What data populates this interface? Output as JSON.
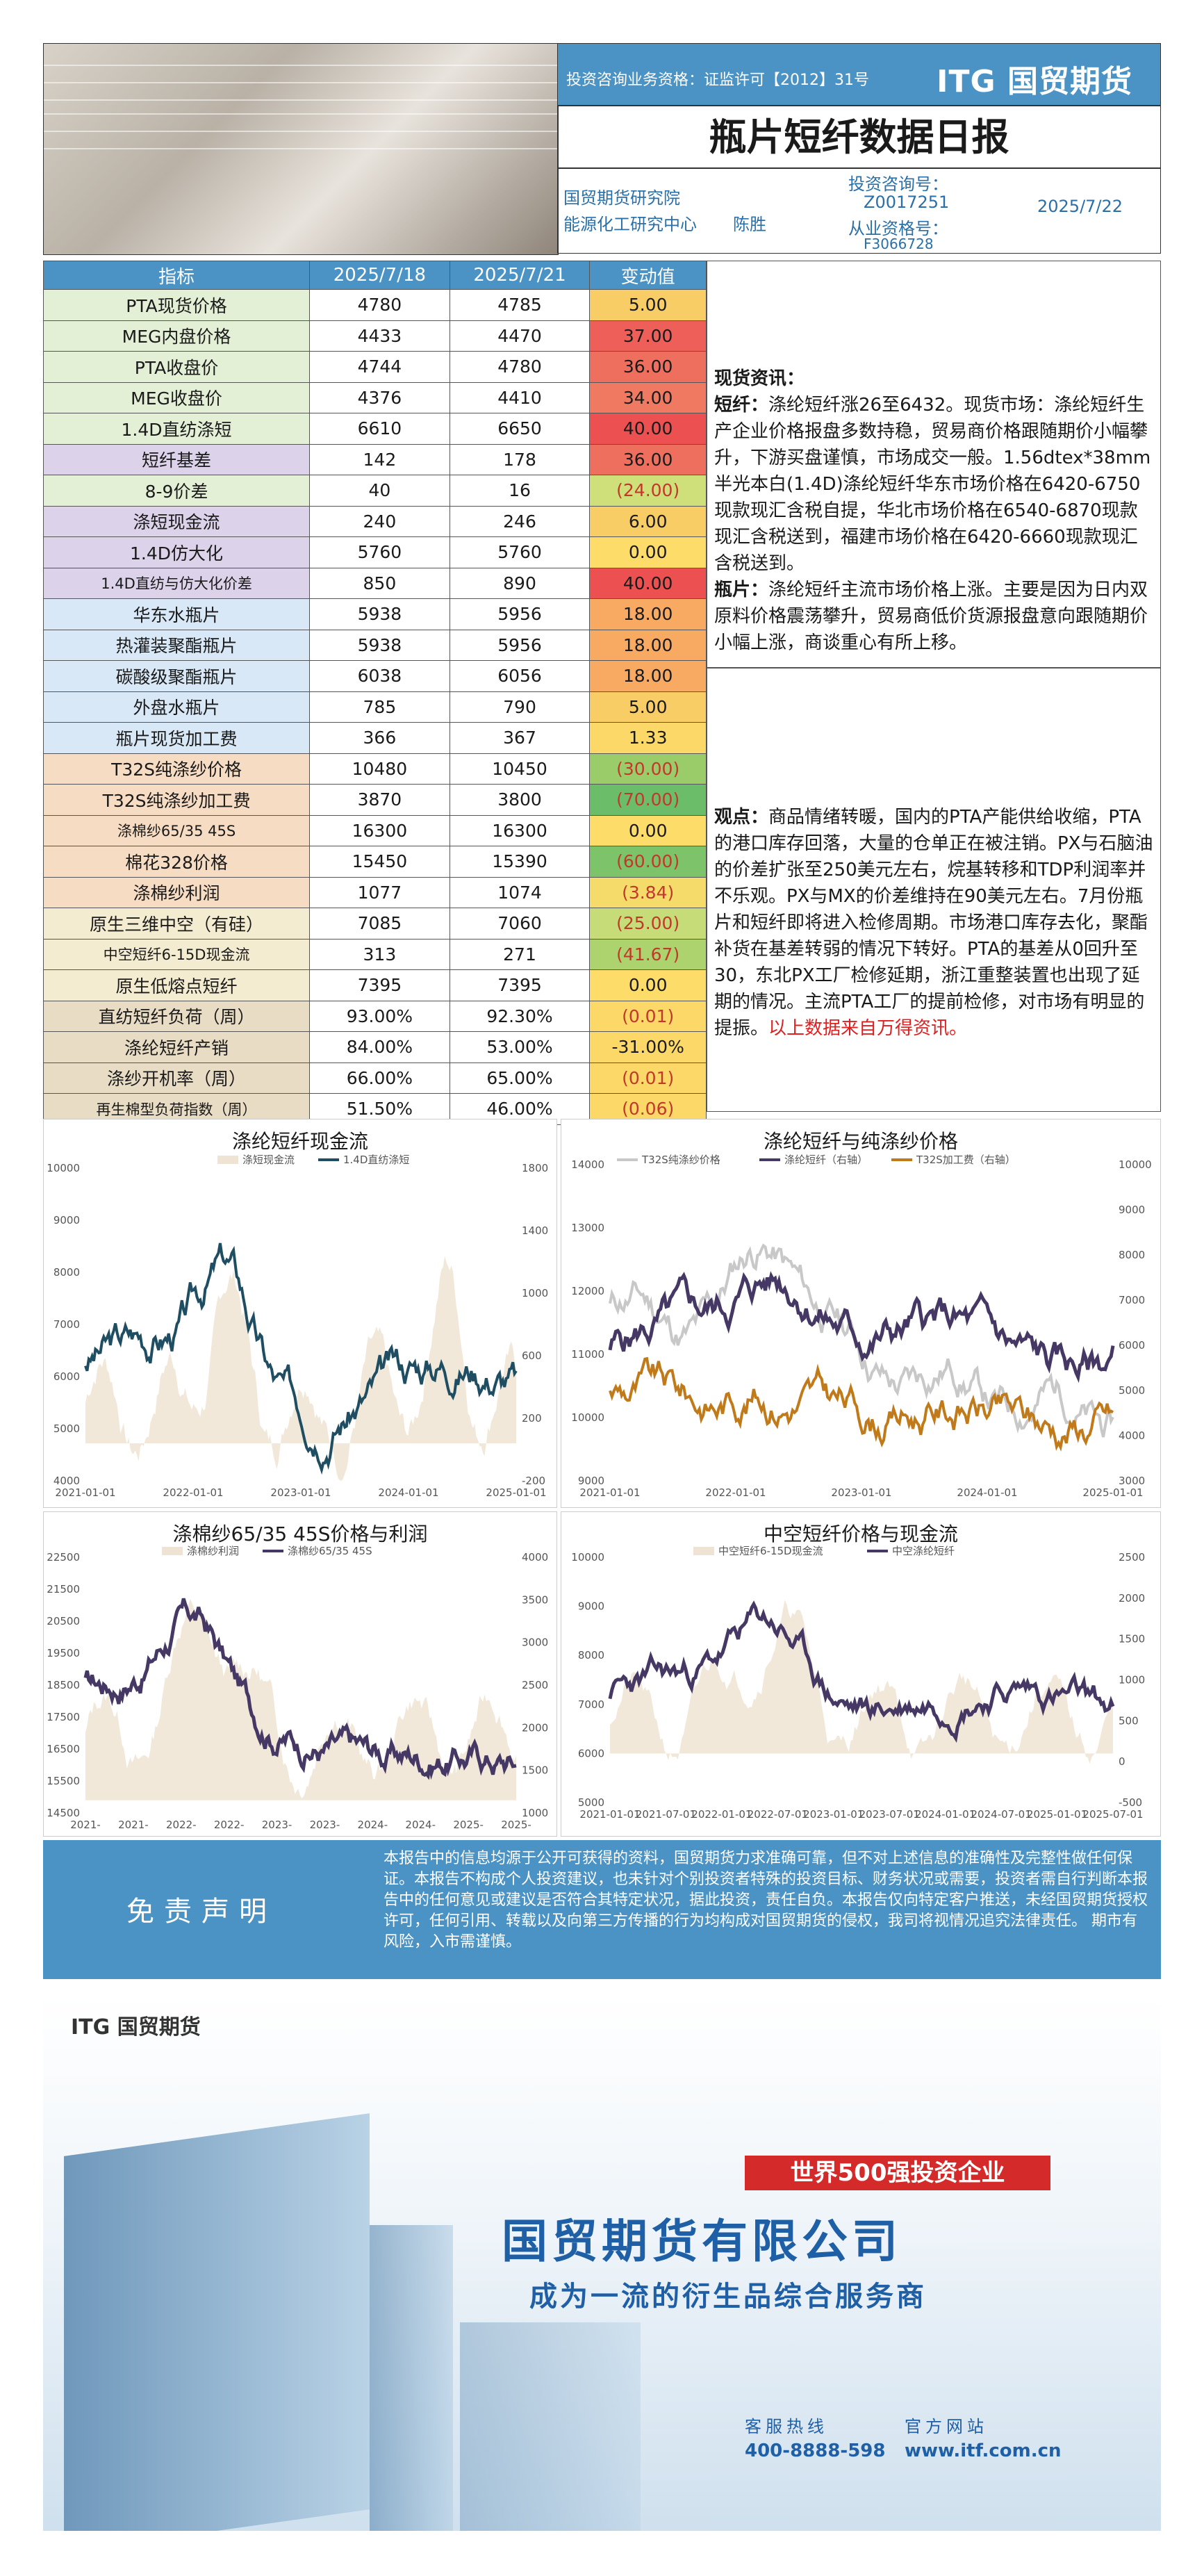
{
  "header": {
    "license": "投资咨询业务资格：证监许可【2012】31号",
    "logo": "ITG 国贸期货",
    "title": "瓶片短纤数据日报",
    "dept1": "国贸期货研究院",
    "dept2": "能源化工研究中心",
    "analyst": "陈胜",
    "consult_label": "投资咨询号：",
    "consult_no": "Z0017251",
    "practice_label": "从业资格号：",
    "practice_no": "F3066728",
    "date": "2025/7/22"
  },
  "table": {
    "headers": [
      "指标",
      "2025/7/18",
      "2025/7/21",
      "变动值"
    ],
    "rows": [
      {
        "name": "PTA现货价格",
        "a": "4780",
        "b": "4785",
        "d": "5.00",
        "c": "#f9cd66"
      },
      {
        "name": "MEG内盘价格",
        "a": "4433",
        "b": "4470",
        "d": "37.00",
        "c": "#ef5f5a"
      },
      {
        "name": "PTA收盘价",
        "a": "4744",
        "b": "4780",
        "d": "36.00",
        "c": "#ef6f5f"
      },
      {
        "name": "MEG收盘价",
        "a": "4376",
        "b": "4410",
        "d": "34.00",
        "c": "#f07a61"
      },
      {
        "name": "1.4D直纺涤短",
        "a": "6610",
        "b": "6650",
        "d": "40.00",
        "c": "#ec5050"
      },
      {
        "name": "短纤基差",
        "a": "142",
        "b": "178",
        "d": "36.00",
        "c": "#ef6f5f"
      },
      {
        "name": "8-9价差",
        "a": "40",
        "b": "16",
        "d": "(24.00)",
        "c": "#cfe07a"
      },
      {
        "name": "涤短现金流",
        "a": "240",
        "b": "246",
        "d": "6.00",
        "c": "#f9cd66"
      },
      {
        "name": "1.4D仿大化",
        "a": "5760",
        "b": "5760",
        "d": "0.00",
        "c": "#fddc6a"
      },
      {
        "name": "1.4D直纺与仿大化价差",
        "a": "850",
        "b": "890",
        "d": "40.00",
        "c": "#ec5050"
      },
      {
        "name": "华东水瓶片",
        "a": "5938",
        "b": "5956",
        "d": "18.00",
        "c": "#f8aa62"
      },
      {
        "name": "热灌装聚酯瓶片",
        "a": "5938",
        "b": "5956",
        "d": "18.00",
        "c": "#f8aa62"
      },
      {
        "name": "碳酸级聚酯瓶片",
        "a": "6038",
        "b": "6056",
        "d": "18.00",
        "c": "#f8aa62"
      },
      {
        "name": "外盘水瓶片",
        "a": "785",
        "b": "790",
        "d": "5.00",
        "c": "#f9cd66"
      },
      {
        "name": "瓶片现货加工费",
        "a": "366",
        "b": "367",
        "d": "1.33",
        "c": "#fbd868"
      },
      {
        "name": "T32S纯涤纱价格",
        "a": "10480",
        "b": "10450",
        "d": "(30.00)",
        "c": "#9bcc6a"
      },
      {
        "name": "T32S纯涤纱加工费",
        "a": "3870",
        "b": "3800",
        "d": "(70.00)",
        "c": "#6bbd6a"
      },
      {
        "name": "涤棉纱65/35 45S",
        "a": "16300",
        "b": "16300",
        "d": "0.00",
        "c": "#fddc6a"
      },
      {
        "name": "棉花328价格",
        "a": "15450",
        "b": "15390",
        "d": "(60.00)",
        "c": "#7cc36a"
      },
      {
        "name": "涤棉纱利润",
        "a": "1077",
        "b": "1074",
        "d": "(3.84)",
        "c": "#f5dc6a"
      },
      {
        "name": "原生三维中空（有硅）",
        "a": "7085",
        "b": "7060",
        "d": "(25.00)",
        "c": "#c5dc78"
      },
      {
        "name": "中空短纤6-15D现金流",
        "a": "313",
        "b": "271",
        "d": "(41.67)",
        "c": "#acd36e"
      },
      {
        "name": "原生低熔点短纤",
        "a": "7395",
        "b": "7395",
        "d": "0.00",
        "c": "#fddc6a"
      },
      {
        "name": "直纺短纤负荷（周）",
        "a": "93.00%",
        "b": "92.30%",
        "d": "(0.01)",
        "c": "#fbd868"
      },
      {
        "name": "涤纶短纤产销",
        "a": "84.00%",
        "b": "53.00%",
        "d": "-31.00%",
        "c": "#fbd868"
      },
      {
        "name": "涤纱开机率（周）",
        "a": "66.00%",
        "b": "65.00%",
        "d": "(0.01)",
        "c": "#fbd868"
      },
      {
        "name": "再生棉型负荷指数（周）",
        "a": "51.50%",
        "b": "46.00%",
        "d": "(0.06)",
        "c": "#fbd868"
      }
    ]
  },
  "spot": {
    "heading": "现货资讯：",
    "pf_label": "短纤：",
    "pf_text": "涤纶短纤涨26至6432。现货市场：涤纶短纤生产企业价格报盘多数持稳，贸易商价格跟随期价小幅攀升，下游买盘谨慎，市场成交一般。1.56dtex*38mm半光本白(1.4D)涤纶短纤华东市场价格在6420-6750现款现汇含税自提，华北市场价格在6540-6870现款现汇含税送到，福建市场价格在6420-6660现款现汇含税送到。",
    "pr_label": "瓶片：",
    "pr_text": "涤纶短纤主流市场价格上涨。主要是因为日内双原料价格震荡攀升，贸易商低价货源报盘意向跟随期价小幅上涨，商谈重心有所上移。"
  },
  "view": {
    "label": "观点：",
    "text": "商品情绪转暖，国内的PTA产能供给收缩，PTA的港口库存回落，大量的仓单正在被注销。PX与石脑油的价差扩张至250美元左右，烷基转移和TDP利润率并不乐观。PX与MX的价差维持在90美元左右。7月份瓶片和短纤即将进入检修周期。市场港口库存去化，聚酯补货在基差转弱的情况下转好。PTA的基差从0回升至30，东北PX工厂检修延期，浙江重整装置也出现了延期的情况。主流PTA工厂的提前检修，对市场有明显的提振。",
    "source": "以上数据来自万得资讯。"
  },
  "charts": {
    "c1": {
      "title": "涤纶短纤现金流",
      "leg1": "涤短现金流",
      "leg2": "1.4D直纺涤短",
      "yl": [
        "10000",
        "9000",
        "8000",
        "7000",
        "6000",
        "5000",
        "4000"
      ],
      "yr": [
        "1800",
        "1400",
        "1000",
        "600",
        "200",
        "-200"
      ],
      "xl": [
        "2021-01-01",
        "2022-01-01",
        "2023-01-01",
        "2024-01-01",
        "2025-01-01"
      ]
    },
    "c2": {
      "title": "涤纶短纤与纯涤纱价格",
      "leg1": "T32S纯涤纱价格",
      "leg2": "涤纶短纤（右轴）",
      "leg3": "T32S加工费（右轴）",
      "yl": [
        "14000",
        "13000",
        "12000",
        "11000",
        "10000",
        "9000"
      ],
      "yr": [
        "10000",
        "9000",
        "8000",
        "7000",
        "6000",
        "5000",
        "4000",
        "3000"
      ],
      "xl": [
        "2021-01-01",
        "2022-01-01",
        "2023-01-01",
        "2024-01-01",
        "2025-01-01"
      ]
    },
    "c3": {
      "title": "涤棉纱65/35 45S价格与利润",
      "leg1": "涤棉纱利润",
      "leg2": "涤棉纱65/35 45S",
      "yl": [
        "22500",
        "21500",
        "20500",
        "19500",
        "18500",
        "17500",
        "16500",
        "15500",
        "14500"
      ],
      "yr": [
        "4000",
        "3500",
        "3000",
        "2500",
        "2000",
        "1500",
        "1000"
      ],
      "xl": [
        "2021-",
        "2021-",
        "2022-",
        "2022-",
        "2023-",
        "2023-",
        "2024-",
        "2024-",
        "2025-",
        "2025-"
      ]
    },
    "c4": {
      "title": "中空短纤价格与现金流",
      "leg1": "中空短纤6-15D现金流",
      "leg2": "中空涤纶短纤",
      "yl": [
        "10000",
        "9000",
        "8000",
        "7000",
        "6000",
        "5000"
      ],
      "yr": [
        "2500",
        "2000",
        "1500",
        "1000",
        "500",
        "0",
        "-500"
      ],
      "xl": [
        "2021-01-01",
        "2021-07-01",
        "2022-01-01",
        "2022-07-01",
        "2023-01-01",
        "2023-07-01",
        "2024-01-01",
        "2024-07-01",
        "2025-01-01",
        "2025-07-01"
      ]
    }
  },
  "disclaimer": {
    "title": "免责声明",
    "text": "本报告中的信息均源于公开可获得的资料，国贸期货力求准确可靠，但不对上述信息的准确性及完整性做任何保证。本报告不构成个人投资建议，也未针对个别投资者特殊的投资目标、财务状况或需要，投资者需自行判断本报告中的任何意见或建议是否符合其特定状况，据此投资，责任自负。本报告仅向特定客户推送，未经国贸期货授权许可，任何引用、转载以及向第三方传播的行为均构成对国贸期货的侵权，我司将视情况追究法律责任。 期市有风险，入市需谨慎。"
  },
  "banner": {
    "logo": "ITG 国贸期货",
    "badge": "世界500强投资企业",
    "company": "国贸期货有限公司",
    "slogan": "成为一流的衍生品综合服务商",
    "hotline_label": "客服热线",
    "web_label": "官方网站",
    "hotline": "400-8888-598",
    "web": "www.itf.com.cn"
  }
}
